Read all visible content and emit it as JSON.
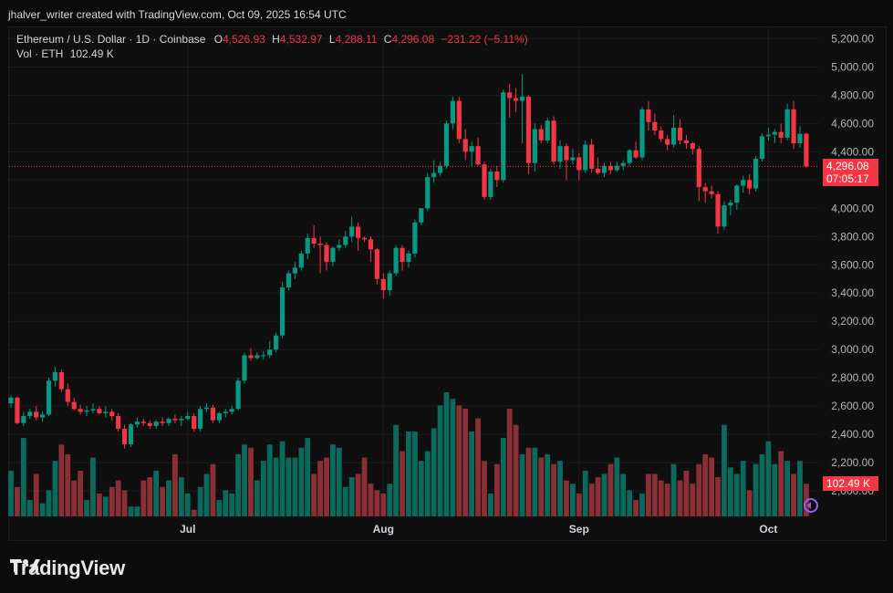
{
  "header": {
    "credit": "jhalver_writer created with TradingView.com, Oct 09, 2025 16:54 UTC"
  },
  "legend": {
    "symbol": "Ethereum / U.S. Dollar · 1D · Coinbase",
    "o_label": "O",
    "o_value": "4,526.93",
    "h_label": "H",
    "h_value": "4,532.97",
    "l_label": "L",
    "l_value": "4,288.11",
    "c_label": "C",
    "c_value": "4,296.08",
    "change": "−231.22 (−5.11%)",
    "vol_label": "Vol · ETH",
    "vol_value": "102.49 K"
  },
  "price_tag": {
    "price": "4,296.08",
    "countdown": "07:05:17"
  },
  "volume_tag": "102.49 K",
  "colors": {
    "up": "#089981",
    "down": "#f23645",
    "background": "#0f0f0f"
  },
  "brand": {
    "name": "TradingView",
    "logo_icon": "tradingview-logo-icon"
  },
  "chart_data": {
    "type": "candlestick",
    "title": "",
    "xlabel": "",
    "ylabel": "",
    "ylim": [
      1820,
      5280
    ],
    "grid": true,
    "y_ticks": [
      "5,200.00",
      "5,000.00",
      "4,800.00",
      "4,600.00",
      "4,400.00",
      "4,200.00",
      "4,000.00",
      "3,800.00",
      "3,600.00",
      "3,400.00",
      "3,200.00",
      "3,000.00",
      "2,800.00",
      "2,600.00",
      "2,400.00",
      "2,200.00",
      "2,000.00"
    ],
    "y_tick_values": [
      5200,
      5000,
      4800,
      4600,
      4400,
      4200,
      4000,
      3800,
      3600,
      3400,
      3200,
      3000,
      2800,
      2600,
      2400,
      2200,
      2000
    ],
    "x_ticks": [
      {
        "label": "Jul",
        "index": 28
      },
      {
        "label": "Aug",
        "index": 59
      },
      {
        "label": "Sep",
        "index": 90
      },
      {
        "label": "Oct",
        "index": 120
      }
    ],
    "candles": [
      {
        "o": 2620,
        "h": 2680,
        "l": 2590,
        "c": 2660
      },
      {
        "o": 2660,
        "h": 2670,
        "l": 2470,
        "c": 2480
      },
      {
        "o": 2480,
        "h": 2560,
        "l": 2460,
        "c": 2530
      },
      {
        "o": 2530,
        "h": 2580,
        "l": 2510,
        "c": 2560
      },
      {
        "o": 2560,
        "h": 2600,
        "l": 2500,
        "c": 2520
      },
      {
        "o": 2520,
        "h": 2560,
        "l": 2490,
        "c": 2540
      },
      {
        "o": 2540,
        "h": 2800,
        "l": 2530,
        "c": 2780
      },
      {
        "o": 2780,
        "h": 2880,
        "l": 2740,
        "c": 2840
      },
      {
        "o": 2840,
        "h": 2860,
        "l": 2700,
        "c": 2720
      },
      {
        "o": 2720,
        "h": 2760,
        "l": 2600,
        "c": 2630
      },
      {
        "o": 2630,
        "h": 2660,
        "l": 2570,
        "c": 2580
      },
      {
        "o": 2580,
        "h": 2610,
        "l": 2540,
        "c": 2560
      },
      {
        "o": 2560,
        "h": 2600,
        "l": 2530,
        "c": 2570
      },
      {
        "o": 2570,
        "h": 2620,
        "l": 2550,
        "c": 2580
      },
      {
        "o": 2580,
        "h": 2600,
        "l": 2540,
        "c": 2550
      },
      {
        "o": 2550,
        "h": 2600,
        "l": 2520,
        "c": 2560
      },
      {
        "o": 2560,
        "h": 2580,
        "l": 2500,
        "c": 2530
      },
      {
        "o": 2530,
        "h": 2550,
        "l": 2420,
        "c": 2440
      },
      {
        "o": 2440,
        "h": 2470,
        "l": 2300,
        "c": 2330
      },
      {
        "o": 2330,
        "h": 2480,
        "l": 2310,
        "c": 2470
      },
      {
        "o": 2470,
        "h": 2520,
        "l": 2450,
        "c": 2490
      },
      {
        "o": 2490,
        "h": 2510,
        "l": 2460,
        "c": 2480
      },
      {
        "o": 2480,
        "h": 2500,
        "l": 2440,
        "c": 2460
      },
      {
        "o": 2460,
        "h": 2500,
        "l": 2440,
        "c": 2490
      },
      {
        "o": 2490,
        "h": 2520,
        "l": 2460,
        "c": 2480
      },
      {
        "o": 2480,
        "h": 2520,
        "l": 2460,
        "c": 2510
      },
      {
        "o": 2510,
        "h": 2540,
        "l": 2480,
        "c": 2500
      },
      {
        "o": 2500,
        "h": 2530,
        "l": 2460,
        "c": 2510
      },
      {
        "o": 2510,
        "h": 2560,
        "l": 2500,
        "c": 2530
      },
      {
        "o": 2530,
        "h": 2550,
        "l": 2420,
        "c": 2440
      },
      {
        "o": 2440,
        "h": 2600,
        "l": 2420,
        "c": 2580
      },
      {
        "o": 2580,
        "h": 2620,
        "l": 2560,
        "c": 2590
      },
      {
        "o": 2590,
        "h": 2610,
        "l": 2480,
        "c": 2500
      },
      {
        "o": 2500,
        "h": 2560,
        "l": 2480,
        "c": 2550
      },
      {
        "o": 2550,
        "h": 2580,
        "l": 2520,
        "c": 2560
      },
      {
        "o": 2560,
        "h": 2600,
        "l": 2540,
        "c": 2580
      },
      {
        "o": 2580,
        "h": 2800,
        "l": 2570,
        "c": 2780
      },
      {
        "o": 2780,
        "h": 2980,
        "l": 2760,
        "c": 2960
      },
      {
        "o": 2960,
        "h": 3010,
        "l": 2920,
        "c": 2940
      },
      {
        "o": 2940,
        "h": 2980,
        "l": 2930,
        "c": 2960
      },
      {
        "o": 2960,
        "h": 2990,
        "l": 2930,
        "c": 2960
      },
      {
        "o": 2960,
        "h": 3060,
        "l": 2940,
        "c": 3000
      },
      {
        "o": 3000,
        "h": 3120,
        "l": 2980,
        "c": 3100
      },
      {
        "o": 3100,
        "h": 3480,
        "l": 3080,
        "c": 3440
      },
      {
        "o": 3440,
        "h": 3560,
        "l": 3420,
        "c": 3540
      },
      {
        "o": 3540,
        "h": 3620,
        "l": 3500,
        "c": 3580
      },
      {
        "o": 3580,
        "h": 3700,
        "l": 3560,
        "c": 3680
      },
      {
        "o": 3680,
        "h": 3820,
        "l": 3640,
        "c": 3790
      },
      {
        "o": 3790,
        "h": 3880,
        "l": 3720,
        "c": 3750
      },
      {
        "o": 3750,
        "h": 3800,
        "l": 3540,
        "c": 3740
      },
      {
        "o": 3740,
        "h": 3760,
        "l": 3560,
        "c": 3620
      },
      {
        "o": 3620,
        "h": 3730,
        "l": 3590,
        "c": 3720
      },
      {
        "o": 3720,
        "h": 3780,
        "l": 3700,
        "c": 3740
      },
      {
        "o": 3740,
        "h": 3840,
        "l": 3720,
        "c": 3800
      },
      {
        "o": 3800,
        "h": 3940,
        "l": 3760,
        "c": 3870
      },
      {
        "o": 3870,
        "h": 3900,
        "l": 3700,
        "c": 3790
      },
      {
        "o": 3790,
        "h": 3800,
        "l": 3760,
        "c": 3780
      },
      {
        "o": 3780,
        "h": 3800,
        "l": 3620,
        "c": 3710
      },
      {
        "o": 3710,
        "h": 3720,
        "l": 3460,
        "c": 3500
      },
      {
        "o": 3500,
        "h": 3540,
        "l": 3360,
        "c": 3420
      },
      {
        "o": 3420,
        "h": 3560,
        "l": 3380,
        "c": 3540
      },
      {
        "o": 3540,
        "h": 3740,
        "l": 3520,
        "c": 3720
      },
      {
        "o": 3720,
        "h": 3740,
        "l": 3560,
        "c": 3620
      },
      {
        "o": 3620,
        "h": 3700,
        "l": 3580,
        "c": 3680
      },
      {
        "o": 3680,
        "h": 3920,
        "l": 3650,
        "c": 3900
      },
      {
        "o": 3900,
        "h": 4000,
        "l": 3880,
        "c": 4000
      },
      {
        "o": 4000,
        "h": 4250,
        "l": 3980,
        "c": 4220
      },
      {
        "o": 4220,
        "h": 4340,
        "l": 4180,
        "c": 4250
      },
      {
        "o": 4250,
        "h": 4330,
        "l": 4230,
        "c": 4300
      },
      {
        "o": 4300,
        "h": 4620,
        "l": 4280,
        "c": 4600
      },
      {
        "o": 4600,
        "h": 4790,
        "l": 4560,
        "c": 4760
      },
      {
        "o": 4760,
        "h": 4790,
        "l": 4460,
        "c": 4490
      },
      {
        "o": 4490,
        "h": 4560,
        "l": 4340,
        "c": 4400
      },
      {
        "o": 4400,
        "h": 4470,
        "l": 4300,
        "c": 4440
      },
      {
        "o": 4440,
        "h": 4500,
        "l": 4300,
        "c": 4310
      },
      {
        "o": 4310,
        "h": 4330,
        "l": 4060,
        "c": 4080
      },
      {
        "o": 4080,
        "h": 4280,
        "l": 4060,
        "c": 4260
      },
      {
        "o": 4260,
        "h": 4300,
        "l": 4150,
        "c": 4200
      },
      {
        "o": 4200,
        "h": 4840,
        "l": 4180,
        "c": 4820
      },
      {
        "o": 4820,
        "h": 4880,
        "l": 4640,
        "c": 4780
      },
      {
        "o": 4780,
        "h": 4850,
        "l": 4680,
        "c": 4760
      },
      {
        "o": 4760,
        "h": 4950,
        "l": 4460,
        "c": 4790
      },
      {
        "o": 4790,
        "h": 4800,
        "l": 4240,
        "c": 4320
      },
      {
        "o": 4320,
        "h": 4600,
        "l": 4260,
        "c": 4560
      },
      {
        "o": 4560,
        "h": 4590,
        "l": 4460,
        "c": 4480
      },
      {
        "o": 4480,
        "h": 4640,
        "l": 4460,
        "c": 4620
      },
      {
        "o": 4620,
        "h": 4650,
        "l": 4310,
        "c": 4330
      },
      {
        "o": 4330,
        "h": 4480,
        "l": 4280,
        "c": 4440
      },
      {
        "o": 4440,
        "h": 4460,
        "l": 4200,
        "c": 4340
      },
      {
        "o": 4340,
        "h": 4420,
        "l": 4310,
        "c": 4360
      },
      {
        "o": 4360,
        "h": 4390,
        "l": 4200,
        "c": 4270
      },
      {
        "o": 4270,
        "h": 4480,
        "l": 4250,
        "c": 4450
      },
      {
        "o": 4450,
        "h": 4490,
        "l": 4250,
        "c": 4280
      },
      {
        "o": 4280,
        "h": 4360,
        "l": 4240,
        "c": 4250
      },
      {
        "o": 4250,
        "h": 4320,
        "l": 4220,
        "c": 4300
      },
      {
        "o": 4300,
        "h": 4330,
        "l": 4240,
        "c": 4270
      },
      {
        "o": 4270,
        "h": 4330,
        "l": 4260,
        "c": 4300
      },
      {
        "o": 4300,
        "h": 4340,
        "l": 4270,
        "c": 4320
      },
      {
        "o": 4320,
        "h": 4420,
        "l": 4300,
        "c": 4410
      },
      {
        "o": 4410,
        "h": 4470,
        "l": 4350,
        "c": 4360
      },
      {
        "o": 4360,
        "h": 4720,
        "l": 4340,
        "c": 4700
      },
      {
        "o": 4700,
        "h": 4760,
        "l": 4550,
        "c": 4610
      },
      {
        "o": 4610,
        "h": 4670,
        "l": 4520,
        "c": 4550
      },
      {
        "o": 4550,
        "h": 4580,
        "l": 4470,
        "c": 4490
      },
      {
        "o": 4490,
        "h": 4520,
        "l": 4410,
        "c": 4450
      },
      {
        "o": 4450,
        "h": 4660,
        "l": 4430,
        "c": 4570
      },
      {
        "o": 4570,
        "h": 4630,
        "l": 4450,
        "c": 4480
      },
      {
        "o": 4480,
        "h": 4520,
        "l": 4420,
        "c": 4460
      },
      {
        "o": 4460,
        "h": 4470,
        "l": 4380,
        "c": 4420
      },
      {
        "o": 4420,
        "h": 4440,
        "l": 4050,
        "c": 4150
      },
      {
        "o": 4150,
        "h": 4180,
        "l": 4040,
        "c": 4120
      },
      {
        "o": 4120,
        "h": 4160,
        "l": 4070,
        "c": 4100
      },
      {
        "o": 4100,
        "h": 4120,
        "l": 3820,
        "c": 3870
      },
      {
        "o": 3870,
        "h": 4050,
        "l": 3850,
        "c": 4020
      },
      {
        "o": 4020,
        "h": 4060,
        "l": 3950,
        "c": 4040
      },
      {
        "o": 4040,
        "h": 4170,
        "l": 3990,
        "c": 4160
      },
      {
        "o": 4160,
        "h": 4230,
        "l": 4110,
        "c": 4200
      },
      {
        "o": 4200,
        "h": 4240,
        "l": 4100,
        "c": 4140
      },
      {
        "o": 4140,
        "h": 4370,
        "l": 4120,
        "c": 4350
      },
      {
        "o": 4350,
        "h": 4530,
        "l": 4330,
        "c": 4510
      },
      {
        "o": 4510,
        "h": 4570,
        "l": 4480,
        "c": 4520
      },
      {
        "o": 4520,
        "h": 4560,
        "l": 4460,
        "c": 4540
      },
      {
        "o": 4540,
        "h": 4600,
        "l": 4460,
        "c": 4500
      },
      {
        "o": 4500,
        "h": 4740,
        "l": 4480,
        "c": 4700
      },
      {
        "o": 4700,
        "h": 4760,
        "l": 4420,
        "c": 4460
      },
      {
        "o": 4460,
        "h": 4580,
        "l": 4430,
        "c": 4527
      },
      {
        "o": 4526.93,
        "h": 4532.97,
        "l": 4288.11,
        "c": 4296.08
      }
    ],
    "volume": [
      14,
      9,
      24,
      5,
      13,
      4,
      8,
      17,
      22,
      19,
      11,
      14,
      5,
      18,
      7,
      6,
      9,
      11,
      8,
      3,
      3,
      11,
      12,
      14,
      9,
      11,
      19,
      12,
      7,
      2,
      9,
      13,
      16,
      5,
      8,
      7,
      19,
      22,
      21,
      11,
      17,
      22,
      18,
      23,
      18,
      18,
      21,
      24,
      13,
      17,
      18,
      22,
      21,
      9,
      12,
      13,
      18,
      10,
      8,
      7,
      10,
      28,
      20,
      26,
      26,
      17,
      20,
      27,
      34,
      38,
      36,
      34,
      33,
      26,
      30,
      17,
      7,
      16,
      24,
      33,
      28,
      19,
      21,
      21,
      18,
      19,
      16,
      17,
      11,
      10,
      7,
      14,
      10,
      12,
      13,
      16,
      18,
      13,
      8,
      5,
      7,
      13,
      13,
      11,
      10,
      16,
      11,
      14,
      10,
      16,
      19,
      18,
      12,
      28,
      15,
      13,
      17,
      8,
      16,
      19,
      23,
      16,
      20,
      17,
      13,
      17,
      10
    ]
  }
}
